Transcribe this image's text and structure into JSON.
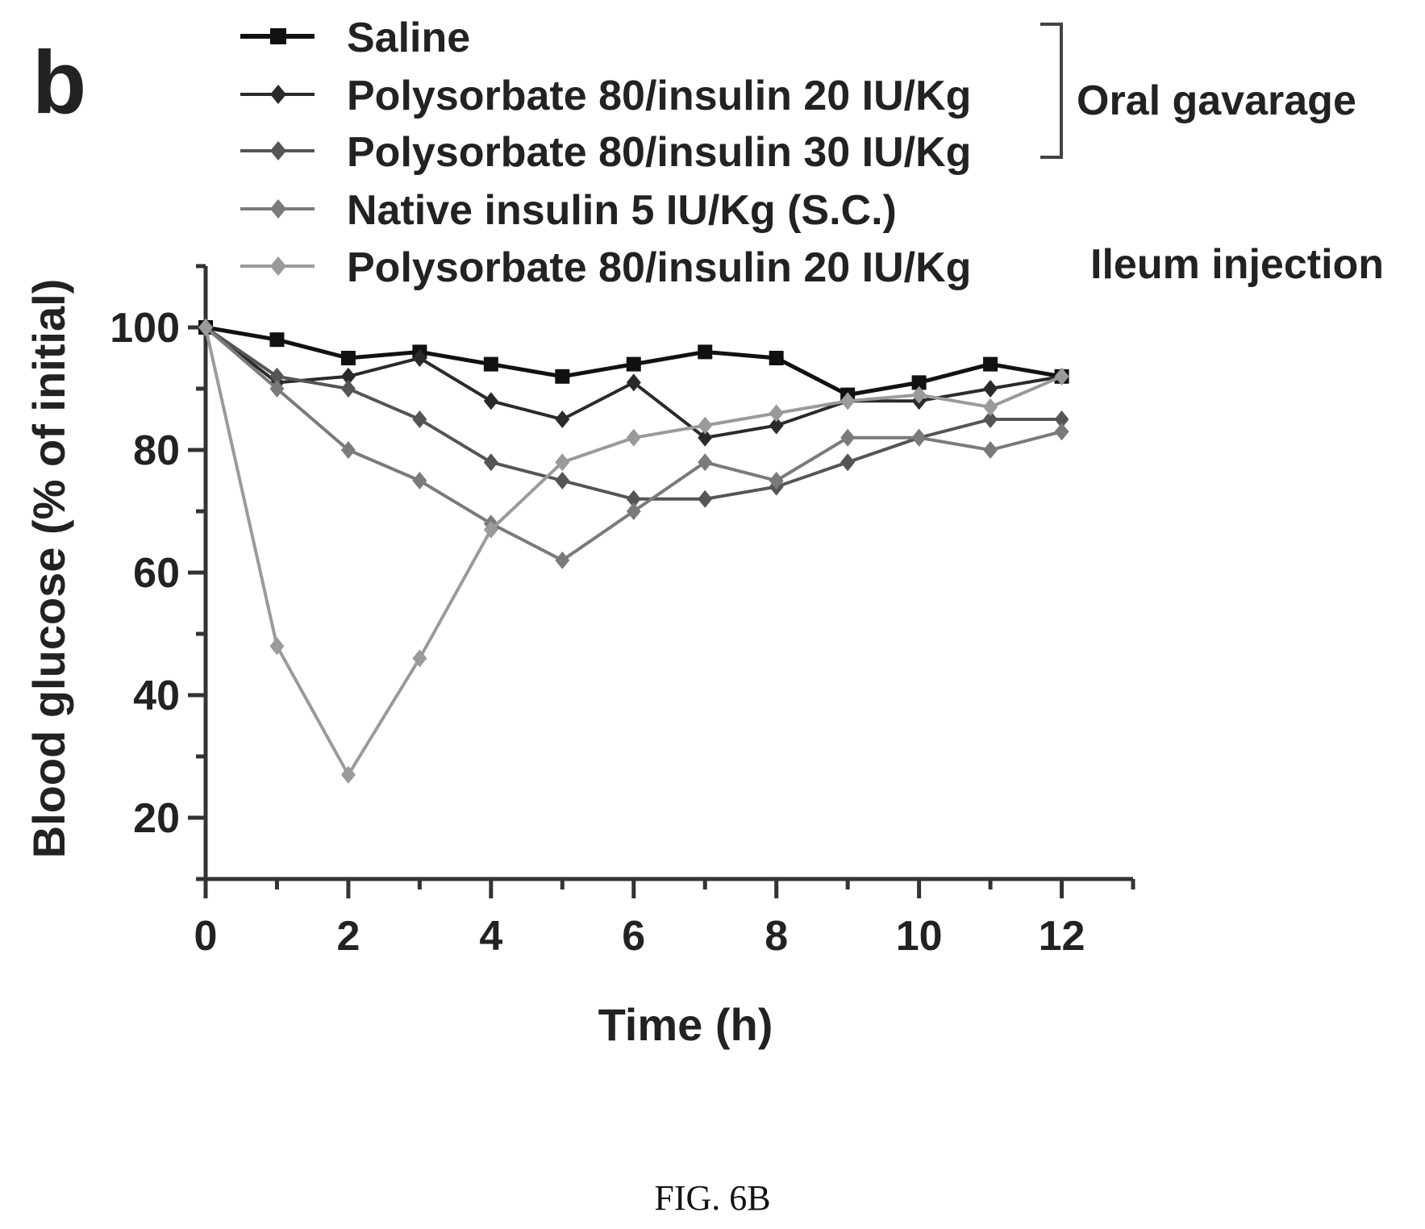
{
  "panel_label": "b",
  "figure_caption": "FIG. 6B",
  "legend_groups": [
    {
      "label": "Oral gavarage"
    },
    {
      "label": "Ileum injection"
    }
  ],
  "chart_data": {
    "type": "line",
    "title": "",
    "xlabel": "Time (h)",
    "ylabel": "Blood glucose (% of initial)",
    "xlim": [
      0,
      13
    ],
    "ylim": [
      10,
      110
    ],
    "x_ticks": [
      0,
      2,
      4,
      6,
      8,
      10,
      12
    ],
    "y_ticks": [
      20,
      40,
      60,
      80,
      100
    ],
    "x": [
      0,
      1,
      2,
      3,
      4,
      5,
      6,
      7,
      8,
      9,
      10,
      11,
      12
    ],
    "series": [
      {
        "name": "Saline",
        "color": "#111111",
        "values": [
          100,
          98,
          95,
          96,
          94,
          92,
          94,
          96,
          95,
          89,
          91,
          94,
          92
        ]
      },
      {
        "name": "Polysorbate 80/insulin 20 IU/Kg",
        "color": "#2a2a2a",
        "values": [
          100,
          91,
          92,
          95,
          88,
          85,
          91,
          82,
          84,
          88,
          88,
          90,
          92
        ]
      },
      {
        "name": "Polysorbate 80/insulin 30 IU/Kg",
        "color": "#555555",
        "values": [
          100,
          92,
          90,
          85,
          78,
          75,
          72,
          72,
          74,
          78,
          82,
          85,
          85
        ]
      },
      {
        "name": "Native insulin 5 IU/Kg (S.C.)",
        "color": "#7a7a7a",
        "values": [
          100,
          90,
          80,
          75,
          68,
          62,
          70,
          78,
          75,
          82,
          82,
          80,
          83
        ]
      },
      {
        "name": "Polysorbate 80/insulin 20 IU/Kg",
        "color": "#9a9a9a",
        "values": [
          100,
          48,
          27,
          46,
          67,
          78,
          82,
          84,
          86,
          88,
          89,
          87,
          92
        ]
      }
    ]
  }
}
